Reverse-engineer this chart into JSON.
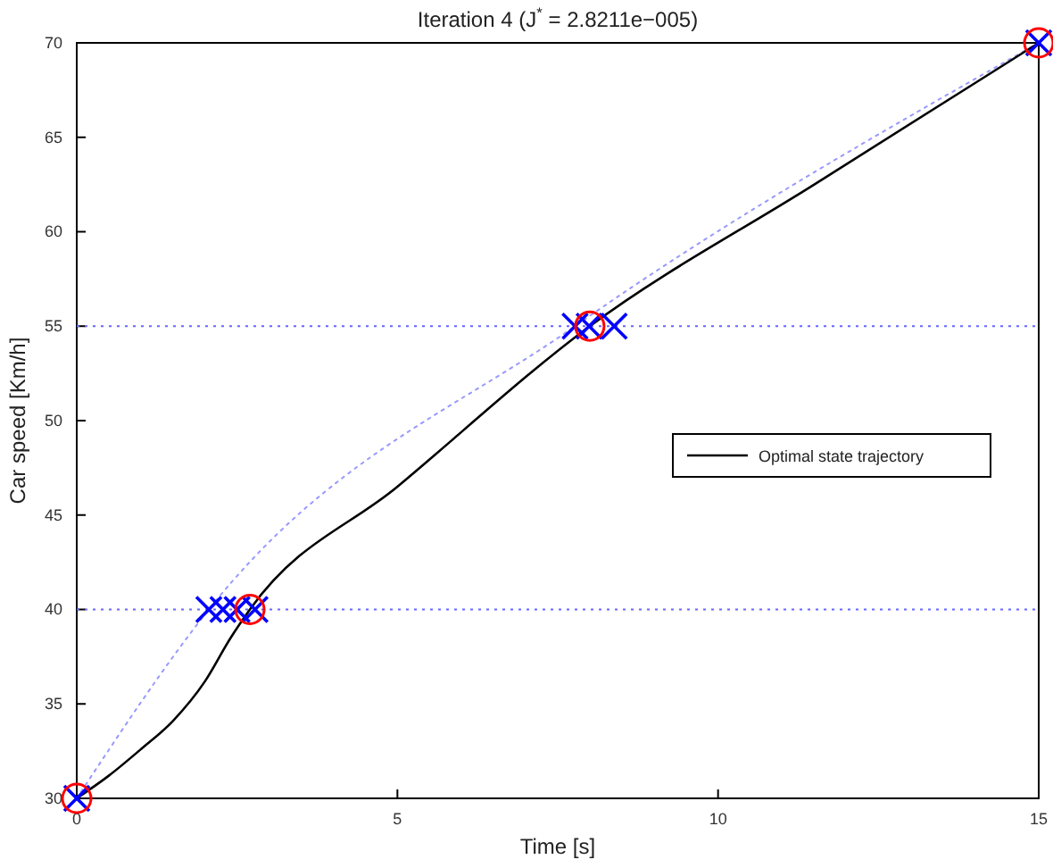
{
  "chart_data": {
    "type": "line",
    "title": "Iteration 4 (J$^{*}$ = 2.8211e−005)",
    "xlabel": "Time [s]",
    "ylabel": "Car speed [Km/h]",
    "xlim": [
      0,
      15
    ],
    "xticks": [
      0,
      5,
      10,
      15
    ],
    "ylim": [
      30,
      70
    ],
    "yticks": [
      30,
      35,
      40,
      45,
      50,
      55,
      60,
      65,
      70
    ],
    "grid": false,
    "legend": "right",
    "tick_labels": "xy",
    "ref_lines": [
      {
        "axis": "y",
        "value": 40,
        "color": "#6666ff",
        "line_style": "dotted"
      },
      {
        "axis": "y",
        "value": 55,
        "color": "#6666ff",
        "line_style": "dotted"
      }
    ],
    "series": [
      {
        "color": "#9999ff",
        "line_style": "dotted",
        "marker": "none",
        "x": [
          0,
          2.06,
          7.77,
          15
        ],
        "values": [
          30,
          40,
          55,
          70
        ]
      },
      {
        "name": "Optimal state trajectory",
        "color": "#000000",
        "line_style": "solid",
        "marker": "none",
        "x": [
          0,
          0.5,
          1,
          1.5,
          2,
          2.4,
          2.7,
          5,
          8,
          11.5,
          15
        ],
        "values": [
          30,
          31.2,
          32.6,
          34.1,
          36.2,
          38.5,
          40,
          46.5,
          55,
          62.5,
          70
        ]
      },
      {
        "type": "scatter",
        "color": "#0000ff",
        "marker": "cross",
        "x": [
          0,
          2.06,
          2.28,
          2.5,
          2.78,
          7.77,
          7.99,
          8.38,
          15
        ],
        "values": [
          30,
          40,
          40,
          40,
          40,
          55,
          55,
          55,
          70
        ]
      },
      {
        "type": "scatter",
        "color": "#ff0000",
        "marker": "circle",
        "x": [
          0,
          2.7,
          8,
          15
        ],
        "values": [
          30,
          40,
          55,
          70
        ]
      }
    ]
  }
}
